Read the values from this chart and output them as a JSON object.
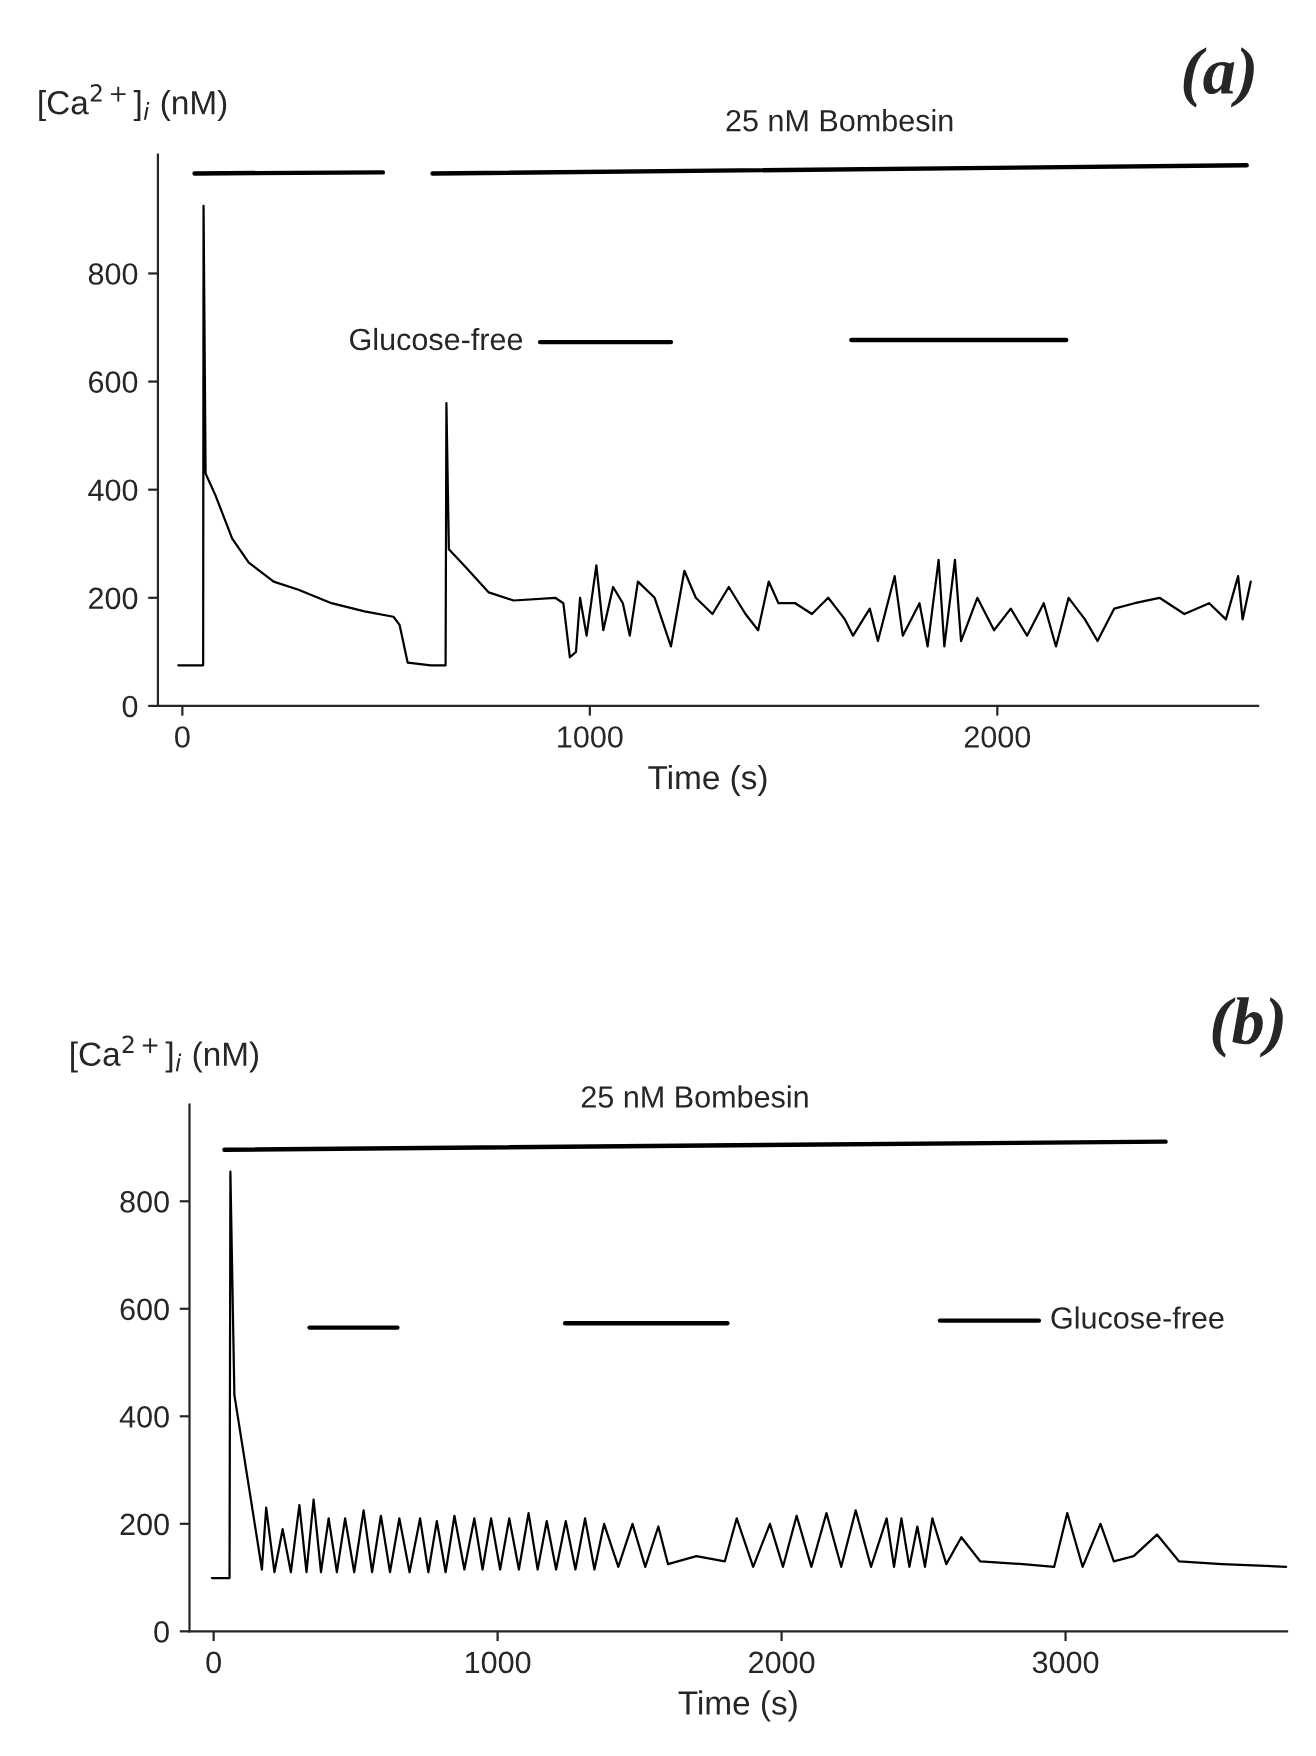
{
  "chart_data": [
    {
      "type": "line",
      "title": "(a)",
      "xlabel": "Time (s)",
      "ylabel": "[Ca$^{2+}$]$_{i}$ (nM)",
      "xlim": [
        -60,
        2640
      ],
      "ylim": [
        0,
        1020
      ],
      "xticks": [
        0,
        1000,
        2000
      ],
      "yticks": [
        0,
        200,
        400,
        600,
        800
      ],
      "grid": false,
      "legend": false,
      "series": [
        {
          "color": "#000000",
          "x": [
            -10,
            51,
            52,
            57,
            81,
            122,
            163,
            224,
            285,
            366,
            447,
            518,
            533,
            553,
            610,
            646,
            648,
            654,
            691,
            752,
            813,
            915,
            935,
            951,
            966,
            976,
            992,
            1016,
            1033,
            1057,
            1081,
            1098,
            1118,
            1159,
            1199,
            1232,
            1260,
            1301,
            1341,
            1382,
            1413,
            1439,
            1463,
            1504,
            1545,
            1585,
            1626,
            1646,
            1687,
            1707,
            1748,
            1768,
            1809,
            1829,
            1856,
            1870,
            1896,
            1911,
            1951,
            1992,
            2033,
            2073,
            2114,
            2144,
            2175,
            2215,
            2246,
            2287,
            2337,
            2398,
            2459,
            2520,
            2561,
            2591,
            2602,
            2622
          ],
          "values": [
            75,
            75,
            925,
            430,
            390,
            310,
            265,
            230,
            215,
            190,
            175,
            165,
            150,
            80,
            75,
            75,
            560,
            290,
            260,
            210,
            195,
            200,
            190,
            90,
            100,
            200,
            130,
            260,
            140,
            220,
            190,
            130,
            230,
            200,
            110,
            250,
            200,
            170,
            220,
            170,
            140,
            230,
            190,
            190,
            170,
            200,
            160,
            130,
            180,
            120,
            240,
            130,
            190,
            110,
            270,
            110,
            270,
            120,
            200,
            140,
            180,
            130,
            190,
            110,
            200,
            160,
            120,
            180,
            190,
            200,
            170,
            190,
            160,
            240,
            160,
            230
          ]
        },
        {
          "color": "#000000",
          "x": [
            30,
            492
          ],
          "values": [
            985,
            987
          ]
        },
        {
          "name": "25 nM Bombesin",
          "color": "#000000",
          "x": [
            614,
            2612
          ],
          "values": [
            985,
            1000
          ]
        },
        {
          "name": "Glucose-free",
          "color": "#000000",
          "x": [
            878,
            1199
          ],
          "values": [
            673,
            673
          ]
        },
        {
          "color": "#000000",
          "x": [
            1642,
            2169
          ],
          "values": [
            677,
            677
          ]
        }
      ]
    },
    {
      "type": "line",
      "title": "(b)",
      "xlabel": "Time (s)",
      "ylabel": "[Ca$^{2+}$]$_{i}$ (nM)",
      "xlim": [
        -85,
        3780
      ],
      "ylim": [
        0,
        980
      ],
      "xticks": [
        0,
        1000,
        2000,
        3000
      ],
      "yticks": [
        0,
        200,
        400,
        600,
        800
      ],
      "grid": false,
      "legend": false,
      "series": [
        {
          "color": "#000000",
          "x": [
            -6,
            56,
            59,
            73,
            170,
            185,
            214,
            243,
            272,
            302,
            327,
            352,
            378,
            405,
            434,
            463,
            495,
            528,
            558,
            589,
            621,
            654,
            690,
            727,
            756,
            786,
            817,
            848,
            883,
            918,
            947,
            977,
            1009,
            1041,
            1075,
            1109,
            1141,
            1173,
            1206,
            1240,
            1274,
            1308,
            1341,
            1375,
            1425,
            1475,
            1520,
            1566,
            1600,
            1700,
            1800,
            1842,
            1900,
            1959,
            2005,
            2053,
            2105,
            2158,
            2210,
            2261,
            2315,
            2370,
            2396,
            2422,
            2450,
            2478,
            2505,
            2531,
            2580,
            2633,
            2700,
            2850,
            2960,
            3006,
            3060,
            3123,
            3170,
            3240,
            3322,
            3400,
            3550,
            3777
          ],
          "values": [
            99,
            99,
            855,
            440,
            115,
            230,
            110,
            190,
            110,
            235,
            110,
            245,
            110,
            210,
            110,
            210,
            110,
            225,
            110,
            215,
            110,
            210,
            110,
            210,
            110,
            205,
            110,
            215,
            115,
            210,
            115,
            210,
            115,
            210,
            115,
            220,
            115,
            205,
            115,
            205,
            115,
            210,
            115,
            200,
            120,
            200,
            120,
            195,
            125,
            140,
            130,
            210,
            120,
            200,
            120,
            215,
            120,
            220,
            120,
            225,
            120,
            210,
            120,
            210,
            120,
            195,
            120,
            210,
            125,
            175,
            130,
            125,
            120,
            220,
            120,
            200,
            130,
            140,
            180,
            130,
            125,
            120
          ]
        },
        {
          "name": "25 nM Bombesin",
          "color": "#000000",
          "x": [
            38,
            3352
          ],
          "values": [
            896,
            911
          ]
        },
        {
          "color": "#000000",
          "x": [
            338,
            647
          ],
          "values": [
            565,
            565
          ]
        },
        {
          "color": "#000000",
          "x": [
            1238,
            1809
          ],
          "values": [
            573,
            573
          ]
        },
        {
          "name": "Glucose-free",
          "color": "#000000",
          "x": [
            2558,
            2906
          ],
          "values": [
            578,
            578
          ]
        }
      ]
    }
  ]
}
